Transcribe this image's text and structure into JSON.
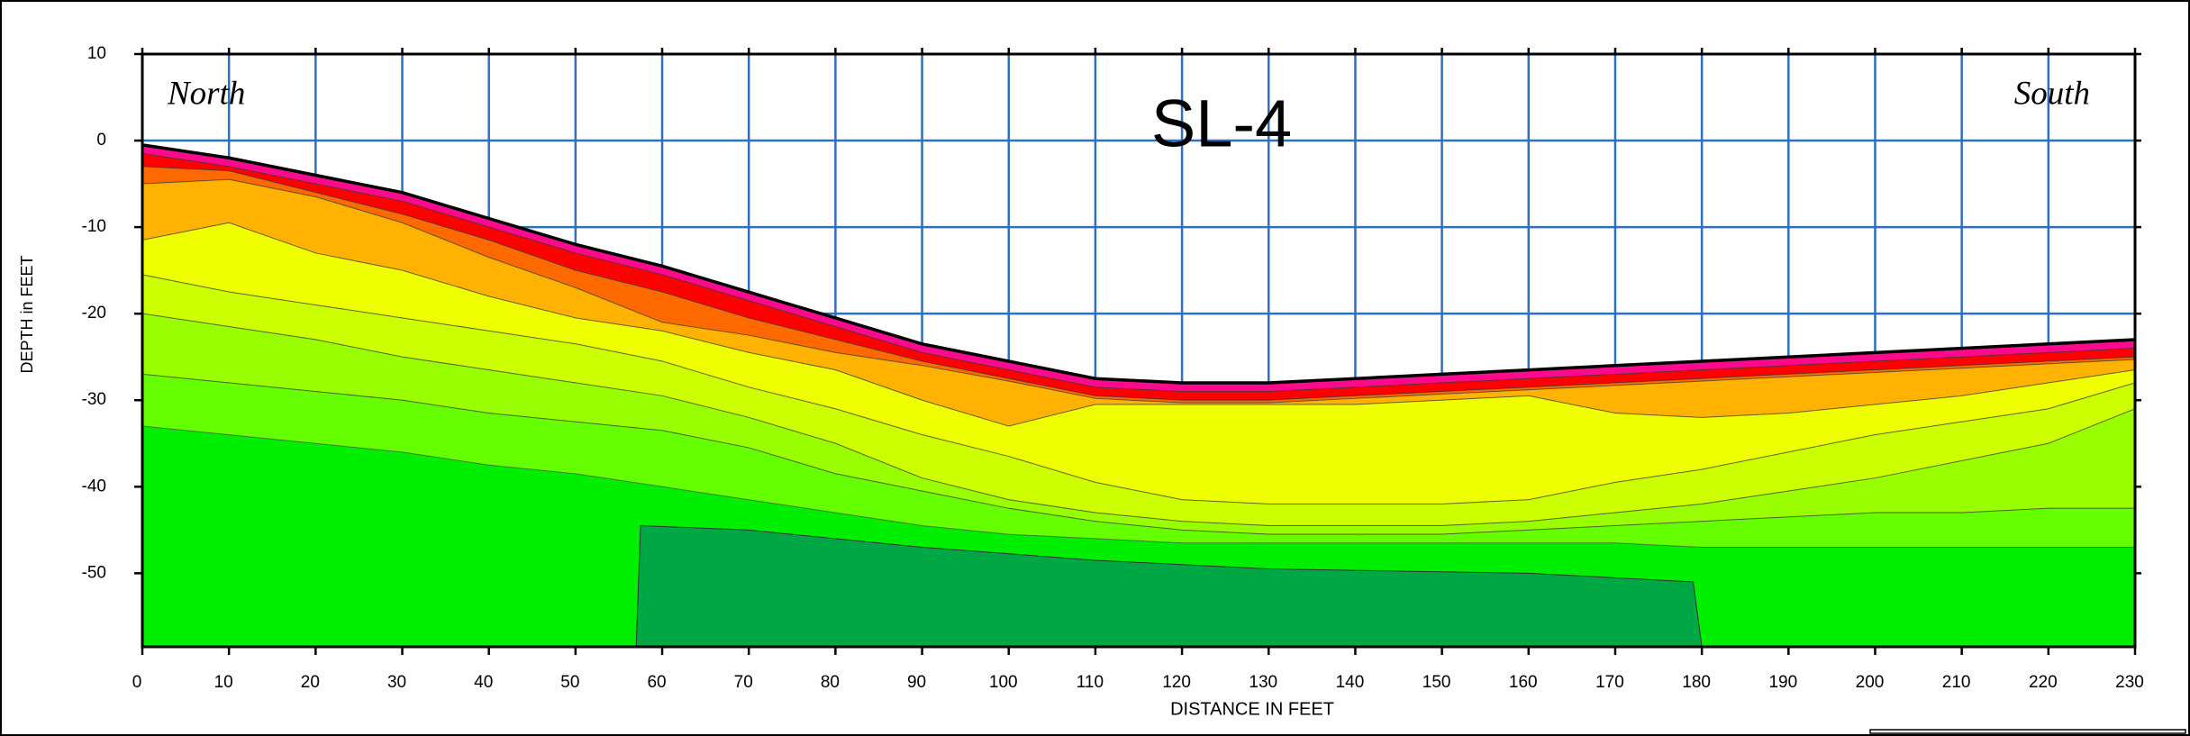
{
  "chart_data": {
    "type": "contour_section",
    "title": "SL-4",
    "annotations": [
      "North",
      "South"
    ],
    "x_label": "DISTANCE IN FEET",
    "y_label": "DEPTH in FEET",
    "x": [
      0,
      10,
      20,
      30,
      40,
      50,
      60,
      70,
      80,
      90,
      100,
      110,
      120,
      130,
      140,
      150,
      160,
      170,
      180,
      190,
      200,
      210,
      220,
      230
    ],
    "xlim": [
      0,
      230
    ],
    "xticks": [
      0,
      10,
      20,
      30,
      40,
      50,
      60,
      70,
      80,
      90,
      100,
      110,
      120,
      130,
      140,
      150,
      160,
      170,
      180,
      190,
      200,
      210,
      220,
      230
    ],
    "ylim": [
      -58.5,
      10
    ],
    "yticks": [
      10,
      0,
      -10,
      -20,
      -30,
      -40,
      -50
    ],
    "grid": true,
    "grid_color": "#2f6fc0",
    "surface": {
      "color": "#000000",
      "values": [
        -0.5,
        -2,
        -4,
        -6,
        -9,
        -12,
        -14.5,
        -17.5,
        -20.5,
        -23.5,
        -25.5,
        -27.5,
        -28,
        -28,
        -27.5,
        -27,
        -26.5,
        -26,
        -25.5,
        -25,
        -24.5,
        -24,
        -23.5,
        -23
      ]
    },
    "series": [
      {
        "color": "#ff0a8c",
        "values": [
          -1.5,
          -3,
          -5,
          -7,
          -10,
          -13,
          -15.5,
          -18.5,
          -21.5,
          -24.5,
          -26.5,
          -28.5,
          -29,
          -29,
          -28.5,
          -28,
          -27.5,
          -27,
          -26.5,
          -26,
          -25.5,
          -25,
          -24.5,
          -24
        ]
      },
      {
        "color": "#ff0000",
        "values": [
          -3,
          -3.5,
          -6,
          -8.5,
          -11.5,
          -15,
          -17.5,
          -20.5,
          -23,
          -25.5,
          -27.5,
          -29.5,
          -30,
          -30,
          -29.5,
          -29,
          -28.5,
          -28,
          -27.5,
          -27,
          -26.5,
          -26,
          -25.5,
          -25
        ]
      },
      {
        "color": "#ff6a00",
        "values": [
          -5,
          -4.5,
          -6.5,
          -9.5,
          -13.5,
          -17,
          -21,
          -22.5,
          -24.5,
          -26,
          -27.8,
          -29.8,
          -30.3,
          -30.3,
          -29.8,
          -29.3,
          -28.8,
          -28.3,
          -27.8,
          -27.3,
          -26.8,
          -26.3,
          -25.8,
          -25.3
        ]
      },
      {
        "color": "#ffb300",
        "values": [
          -11.5,
          -9.5,
          -13,
          -15,
          -18,
          -20.5,
          -22,
          -24.5,
          -26.5,
          -30,
          -33,
          -30.5,
          -30.5,
          -30.5,
          -30.5,
          -30,
          -29.5,
          -31.5,
          -32,
          -31.5,
          -30.5,
          -29.5,
          -28,
          -26.5
        ]
      },
      {
        "color": "#f0ff00",
        "values": [
          -15.5,
          -17.5,
          -19,
          -20.5,
          -22,
          -23.5,
          -25.5,
          -28.5,
          -31,
          -34,
          -36.5,
          -39.5,
          -41.5,
          -42,
          -42,
          -42,
          -41.5,
          -39.5,
          -38,
          -36,
          -34,
          -32.5,
          -31,
          -28
        ]
      },
      {
        "color": "#ccff00",
        "values": [
          -20,
          -21.5,
          -23,
          -25,
          -26.5,
          -28,
          -29.5,
          -32,
          -35,
          -39,
          -41.5,
          -43,
          -44,
          -44.5,
          -44.5,
          -44.5,
          -44,
          -43,
          -42,
          -40.5,
          -39,
          -37,
          -35,
          -31
        ]
      },
      {
        "color": "#99ff00",
        "values": [
          -27,
          -28,
          -29,
          -30,
          -31.5,
          -32.5,
          -33.5,
          -35.5,
          -38.5,
          -40.5,
          -42.5,
          -44,
          -45,
          -45.5,
          -45.5,
          -45.5,
          -45,
          -44.5,
          -44,
          -43.5,
          -43,
          -43,
          -42.5,
          -42.5
        ]
      },
      {
        "color": "#66ff00",
        "values": [
          -33,
          -34,
          -35,
          -36,
          -37.5,
          -38.5,
          -40,
          -41.5,
          -43,
          -44.5,
          -45.5,
          -46,
          -46.5,
          -46.5,
          -46.5,
          -46.5,
          -46.5,
          -46.5,
          -47,
          -47,
          -47,
          -47,
          -47,
          -47
        ]
      }
    ],
    "base_color": "#00ee00",
    "regions": [
      {
        "color": "#00a845",
        "x": [
          57,
          57.5,
          70,
          90,
          110,
          130,
          160,
          179,
          180
        ],
        "y": [
          -58.5,
          -44.5,
          -45,
          -47,
          -48.5,
          -49.5,
          -50,
          -51,
          -58.5
        ]
      }
    ]
  }
}
